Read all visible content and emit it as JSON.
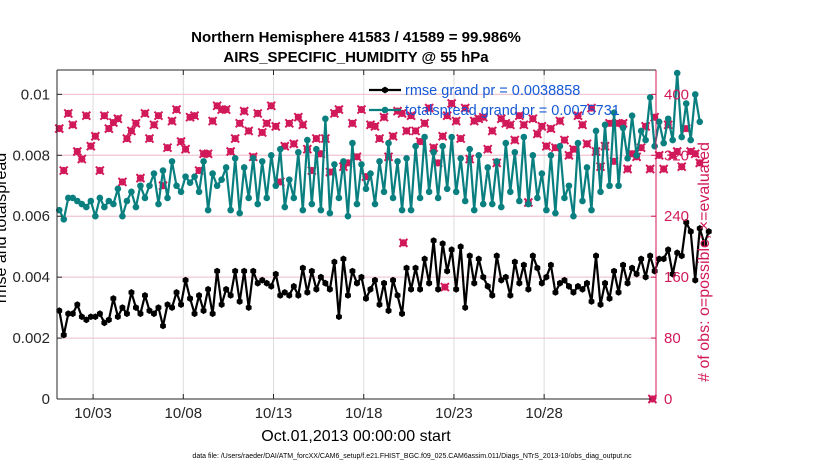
{
  "chart_data": {
    "type": "line",
    "title": "Northern Hemisphere 41583 / 41589 = 99.986%",
    "subtitle": "AIRS_SPECIFIC_HUMIDITY @ 55 hPa",
    "xlabel": "Oct.01,2013 00:00:00 start",
    "ylabel": "rmse and totalspread",
    "ylabel_right": "# of obs: o=possible; ×=evaluated",
    "footnote": "data file: /Users/raeder/DAI/ATM_forcXX/CAM6_setup/f.e21.FHIST_BGC.f09_025.CAM6assim.011/Diags_NTrS_2013-10/obs_diag_output.nc",
    "x_unit": "days since Oct.01,2013 00:00:00",
    "xlim": [
      0,
      33.2
    ],
    "x_ticks": [
      2,
      7,
      12,
      17,
      22,
      27
    ],
    "x_ticklabels": [
      "10/03",
      "10/08",
      "10/13",
      "10/18",
      "10/23",
      "10/28"
    ],
    "ylim": [
      0,
      0.0108
    ],
    "y_ticks": [
      0,
      0.002,
      0.004,
      0.006,
      0.008,
      0.01
    ],
    "y_ticklabels": [
      "0",
      "0.002",
      "0.004",
      "0.006",
      "0.008",
      "0.01"
    ],
    "ylim_right": [
      0,
      432
    ],
    "y_ticks_right": [
      0,
      80,
      160,
      240,
      320,
      400
    ],
    "y_ticklabels_right": [
      "0",
      "80",
      "160",
      "240",
      "320",
      "400"
    ],
    "grid": true,
    "legend_position": "top-right",
    "x_start": 0.125,
    "x_step": 0.25,
    "series": [
      {
        "name": "rmse grand pr = 0.0038858",
        "axis": "left",
        "color": "#000000",
        "marker": "hexagon",
        "values": [
          0.0029,
          0.0021,
          0.0028,
          0.0028,
          0.0031,
          0.0027,
          0.0026,
          0.0027,
          0.0027,
          0.0028,
          0.0025,
          0.0026,
          0.0033,
          0.0027,
          0.003,
          0.0028,
          0.0035,
          0.003,
          0.0028,
          0.0034,
          0.0029,
          0.0028,
          0.003,
          0.0024,
          0.0031,
          0.003,
          0.0035,
          0.0031,
          0.0039,
          0.0033,
          0.0028,
          0.0034,
          0.0029,
          0.0036,
          0.0028,
          0.0042,
          0.0031,
          0.0036,
          0.0034,
          0.0042,
          0.0032,
          0.0042,
          0.003,
          0.0042,
          0.0038,
          0.0039,
          0.0038,
          0.0037,
          0.0041,
          0.0034,
          0.0035,
          0.0034,
          0.0037,
          0.0034,
          0.0043,
          0.0035,
          0.0042,
          0.0036,
          0.004,
          0.0038,
          0.0036,
          0.0045,
          0.0027,
          0.0046,
          0.0034,
          0.0042,
          0.0038,
          0.004,
          0.0033,
          0.0036,
          0.0039,
          0.0031,
          0.0038,
          0.0029,
          0.0039,
          0.0034,
          0.0028,
          0.0043,
          0.0036,
          0.0043,
          0.0036,
          0.0046,
          0.0038,
          0.0052,
          0.0036,
          0.0051,
          0.0042,
          0.0049,
          0.0036,
          0.005,
          0.003,
          0.0047,
          0.0038,
          0.0046,
          0.004,
          0.0037,
          0.0034,
          0.0047,
          0.0039,
          0.004,
          0.0034,
          0.0045,
          0.0038,
          0.0044,
          0.0036,
          0.0047,
          0.0043,
          0.0038,
          0.004,
          0.0044,
          0.0035,
          0.0038,
          0.0039,
          0.0037,
          0.0035,
          0.0037,
          0.0036,
          0.0038,
          0.0032,
          0.0047,
          0.0031,
          0.0038,
          0.0033,
          0.0042,
          0.0035,
          0.0044,
          0.0038,
          0.0043,
          0.0041,
          0.0046,
          0.004,
          0.0047,
          0.0042,
          0.0046,
          0.0046,
          0.0049,
          0.0041,
          0.0048,
          0.0047,
          0.0058,
          0.0055,
          0.0039,
          0.0056,
          0.0051,
          0.0055
        ]
      },
      {
        "name": "totalspread grand pr = 0.0075731",
        "axis": "left",
        "color": "#0a7f80",
        "marker": "circle",
        "values": [
          0.0062,
          0.0059,
          0.0066,
          0.0066,
          0.0065,
          0.0064,
          0.0063,
          0.0065,
          0.006,
          0.0066,
          0.0063,
          0.0065,
          0.0064,
          0.0069,
          0.006,
          0.0065,
          0.0068,
          0.0063,
          0.007,
          0.0066,
          0.007,
          0.0074,
          0.0064,
          0.0075,
          0.0066,
          0.0078,
          0.007,
          0.0068,
          0.0073,
          0.0071,
          0.0073,
          0.0068,
          0.0078,
          0.0062,
          0.0074,
          0.007,
          0.0072,
          0.0076,
          0.0062,
          0.0079,
          0.0061,
          0.0076,
          0.0066,
          0.0079,
          0.0064,
          0.0078,
          0.0066,
          0.008,
          0.007,
          0.0082,
          0.0063,
          0.0072,
          0.0066,
          0.0081,
          0.0062,
          0.0085,
          0.0064,
          0.0082,
          0.0062,
          0.0092,
          0.0061,
          0.0077,
          0.0066,
          0.0078,
          0.006,
          0.0084,
          0.0064,
          0.0077,
          0.0069,
          0.0074,
          0.0064,
          0.0078,
          0.0068,
          0.0084,
          0.0066,
          0.0078,
          0.0062,
          0.0079,
          0.0062,
          0.0083,
          0.0066,
          0.0086,
          0.0068,
          0.0081,
          0.0066,
          0.0083,
          0.0069,
          0.0086,
          0.0068,
          0.0079,
          0.0065,
          0.0082,
          0.0062,
          0.008,
          0.0064,
          0.0076,
          0.0064,
          0.0078,
          0.0063,
          0.0084,
          0.0068,
          0.0081,
          0.0065,
          0.0086,
          0.0064,
          0.008,
          0.0066,
          0.0074,
          0.0062,
          0.008,
          0.0061,
          0.0083,
          0.0066,
          0.007,
          0.006,
          0.0084,
          0.0065,
          0.0076,
          0.0062,
          0.0088,
          0.0068,
          0.009,
          0.007,
          0.0094,
          0.007,
          0.0089,
          0.0079,
          0.0093,
          0.008,
          0.0088,
          0.0085,
          0.0099,
          0.0083,
          0.0091,
          0.0084,
          0.0092,
          0.0085,
          0.0107,
          0.0086,
          0.0097,
          0.0085,
          0.01,
          0.0091
        ]
      }
    ],
    "obs_series": [
      {
        "name": "possible",
        "axis": "right",
        "color": "#d1195a",
        "marker": "circle",
        "values": [
          355,
          300,
          375,
          360,
          325,
          315,
          372,
          332,
          345,
          300,
          372,
          355,
          363,
          368,
          285,
          342,
          352,
          362,
          290,
          375,
          342,
          360,
          372,
          280,
          330,
          365,
          380,
          338,
          328,
          370,
          372,
          300,
          322,
          322,
          365,
          385,
          380,
          380,
          325,
          342,
          362,
          378,
          352,
          318,
          375,
          350,
          362,
          385,
          358,
          285,
          332,
          362,
          335,
          370,
          360,
          328,
          300,
          342,
          322,
          342,
          298,
          375,
          380,
          305,
          310,
          362,
          318,
          380,
          292,
          360,
          358,
          342,
          370,
          318,
          345,
          378,
          375,
          352,
          372,
          352,
          338,
          362,
          382,
          330,
          310,
          345,
          372,
          388,
          365,
          342,
          382,
          315,
          365,
          368,
          370,
          328,
          352,
          310,
          368,
          362,
          360,
          340,
          372,
          360,
          258,
          368,
          348,
          358,
          332,
          355,
          330,
          365,
          340,
          320,
          328,
          372,
          360,
          335,
          382,
          325,
          305,
          332,
          362,
          312,
          362,
          362,
          302,
          322,
          318,
          330,
          358,
          302,
          370,
          320,
          302,
          360,
          320,
          325,
          305,
          355,
          325,
          322,
          310
        ]
      },
      {
        "name": "evaluated",
        "axis": "right",
        "color": "#d1195a",
        "marker": "x",
        "points": [
          [
            19.2,
            205
          ],
          [
            21.5,
            147
          ],
          [
            33.0,
            0
          ]
        ]
      }
    ]
  }
}
